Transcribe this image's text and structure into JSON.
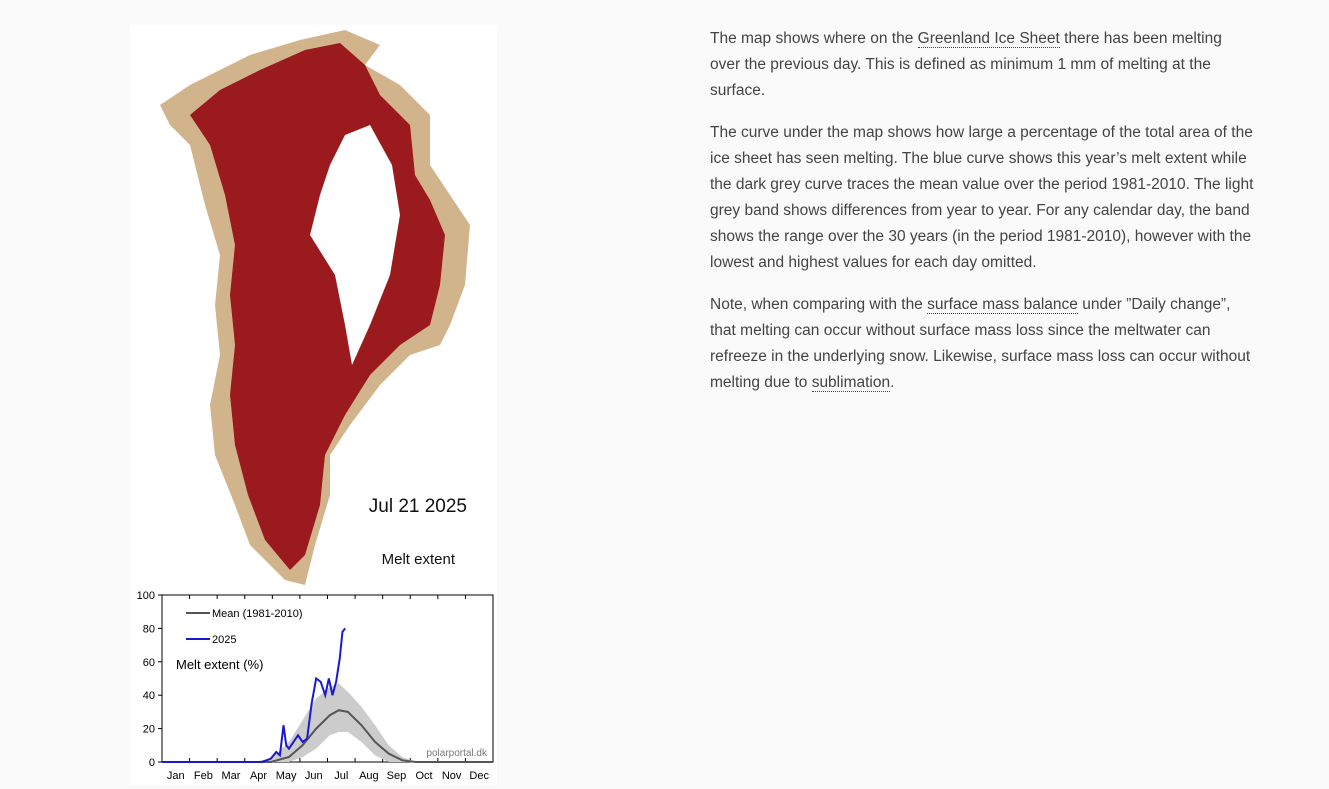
{
  "figure": {
    "date_label": "Jul 21 2025",
    "map_title": "Melt extent",
    "chart": {
      "type": "line",
      "y_label": "Melt extent (%)",
      "source": "polarportal.dk",
      "xlim": [
        0,
        365
      ],
      "ylim": [
        0,
        100
      ],
      "yticks": [
        0,
        20,
        40,
        60,
        80,
        100
      ],
      "months": [
        "Jan",
        "Feb",
        "Mar",
        "Apr",
        "May",
        "Jun",
        "Jul",
        "Aug",
        "Sep",
        "Oct",
        "Nov",
        "Dec"
      ],
      "band": {
        "color": "#cccccc",
        "x": [
          100,
          120,
          140,
          155,
          170,
          185,
          195,
          205,
          220,
          235,
          250,
          265,
          280
        ],
        "low": [
          0,
          0,
          0,
          3,
          8,
          16,
          18,
          18,
          12,
          4,
          0,
          0,
          0
        ],
        "high": [
          0,
          2,
          12,
          25,
          38,
          45,
          47,
          42,
          33,
          22,
          10,
          3,
          0
        ]
      },
      "series": [
        {
          "name": "Mean (1981-2010)",
          "color": "#555555",
          "x": [
            0,
            100,
            120,
            140,
            155,
            170,
            185,
            195,
            205,
            220,
            235,
            250,
            265,
            280,
            365
          ],
          "values": [
            0,
            0,
            0,
            3,
            10,
            20,
            28,
            31,
            30,
            22,
            12,
            5,
            1,
            0,
            0
          ]
        },
        {
          "name": "2025",
          "color": "#1a1acc",
          "x": [
            0,
            110,
            120,
            126,
            130,
            134,
            137,
            140,
            145,
            150,
            155,
            160,
            165,
            170,
            175,
            180,
            184,
            188,
            192,
            196,
            199,
            202
          ],
          "values": [
            0,
            0,
            2,
            6,
            4,
            22,
            10,
            8,
            12,
            16,
            12,
            14,
            35,
            50,
            48,
            40,
            50,
            40,
            48,
            62,
            78,
            80
          ]
        }
      ]
    }
  },
  "paragraphs": [
    {
      "before": "The map shows where on the ",
      "link": "Greenland Ice Sheet",
      "after": " there has been melting over the previous day. This is defined as minimum 1 mm of melting at the surface."
    },
    {
      "text": "The curve under the map shows how large a percentage of the total area of the ice sheet has seen melting. The blue curve shows this year’s melt extent while the dark grey curve traces the mean value over the period 1981-2010. The light grey band shows differences from year to year. For any calendar day, the band shows the range over the 30 years (in the period 1981-2010), however with the lowest and highest values for each day omitted."
    },
    {
      "before": "Note, when comparing with the ",
      "link": "surface mass balance",
      "middle": " under ”Daily change”, that melting can occur without surface mass loss since the meltwater can refreeze in the underlying snow. Likewise, surface mass loss can occur without melting due to ",
      "link2": "sublimation",
      "after": "."
    }
  ]
}
